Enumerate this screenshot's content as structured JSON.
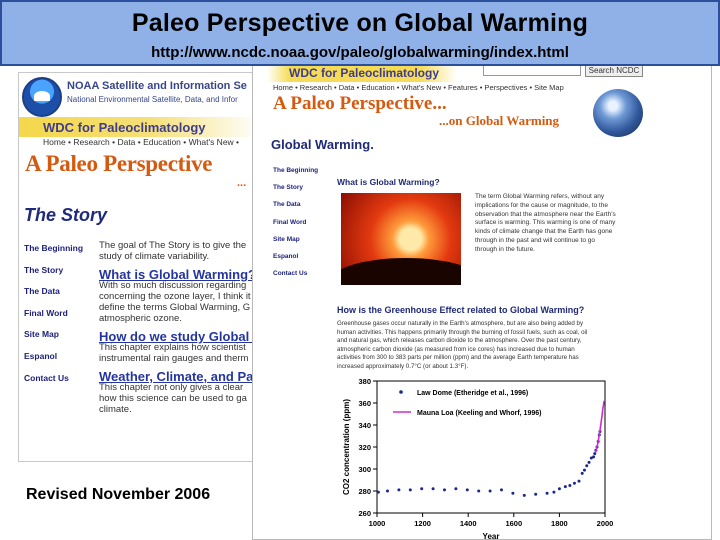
{
  "banner": {
    "title": "Paleo Perspective on Global Warming",
    "url": "http://www.ncdc.noaa.gov/paleo/globalwarming/index.html"
  },
  "footer": {
    "revised": "Revised November 2006"
  },
  "left_page": {
    "noaa_title": "NOAA Satellite and Information Se",
    "noaa_subtitle": "National Environmental Satellite, Data, and Infor",
    "wdc_title": "WDC for Paleoclimatology",
    "nav": "Home • Research • Data • Education • What's New •",
    "paleo_title": "A Paleo Perspective",
    "paleo_dots": "...",
    "section_title": "The Story",
    "side_links": [
      "The Beginning",
      "The Story",
      "The Data",
      "Final Word",
      "Site Map",
      "Espanol",
      "Contact Us"
    ],
    "body": {
      "intro": [
        "The goal of The Story is to give the",
        "study of climate variability."
      ],
      "link1": "What is Global Warming?",
      "text1": [
        "With so much discussion regarding",
        "concerning the ozone layer, I think it",
        "define the terms Global Warming, G",
        "atmospheric ozone."
      ],
      "link2": "How do we study Global W",
      "text2": [
        "This chapter explains how scientist",
        "instrumental rain gauges and therm"
      ],
      "link3": "Weather, Climate, and Pale",
      "text3": [
        "This chapter not only gives a clear",
        "how this science can be used to ga",
        "climate."
      ]
    }
  },
  "right_page": {
    "wdc_title": "WDC for Paleoclimatology",
    "search_button": "Search NCDC",
    "nav": "Home • Research • Data • Education • What's New • Features • Perspectives • Site Map",
    "paleo_title_1": "A Paleo Perspective...",
    "paleo_title_2": "...on Global Warming",
    "section_title": "Global Warming.",
    "side_links": [
      "The Beginning",
      "The Story",
      "The Data",
      "Final Word",
      "Site Map",
      "Espanol",
      "Contact Us"
    ],
    "question1": "What is Global Warming?",
    "para1": [
      "The term Global Warming refers, without any",
      "implications for the cause or magnitude, to the",
      "observation that the atmosphere near the Earth's",
      "surface is warming. This warming is one of many",
      "kinds of climate change that the Earth has gone",
      "through in the past and will continue to go",
      "through in the future."
    ],
    "question2": "How is the Greenhouse Effect related to Global Warming?",
    "para2": [
      "Greenhouse gases occur naturally in the Earth's atmosphere, but are also being added by",
      "human activities. This happens primarily through the burning of fossil fuels, such as coal, oil",
      "and natural gas, which releases carbon dioxide to the atmosphere. Over the past century,",
      "atmospheric carbon dioxide (as measured from ice cores) has increased due to human",
      "activities from 300 to 383 parts per million (ppm) and the average Earth temperature has",
      "increased approximately 0.7°C (or about 1.3°F)."
    ]
  },
  "chart_data": {
    "type": "scatter",
    "title": "",
    "xlabel": "Year",
    "ylabel": "CO2 concentration (ppm)",
    "xlim": [
      1000,
      2000
    ],
    "ylim": [
      260,
      380
    ],
    "xticks": [
      "1000",
      "1200",
      "1400",
      "1600",
      "1800",
      "2000"
    ],
    "yticks": [
      "260",
      "280",
      "300",
      "320",
      "340",
      "360",
      "380"
    ],
    "legend_position": "top-left",
    "series": [
      {
        "name": "Law Dome (Etheridge et al., 1996)",
        "style": "points",
        "color": "#1b2a8a",
        "x": [
          1006,
          1046,
          1096,
          1146,
          1196,
          1246,
          1296,
          1346,
          1396,
          1446,
          1496,
          1546,
          1596,
          1646,
          1696,
          1746,
          1776,
          1800,
          1826,
          1846,
          1866,
          1886,
          1900,
          1910,
          1920,
          1930,
          1940,
          1950,
          1955,
          1960,
          1965,
          1970,
          1975,
          1978
        ],
        "y": [
          279,
          280,
          281,
          281,
          282,
          282,
          281,
          282,
          281,
          280,
          280,
          281,
          278,
          276,
          277,
          278,
          279,
          282,
          284,
          285,
          287,
          289,
          296,
          299,
          303,
          306,
          310,
          311,
          314,
          317,
          320,
          325,
          331,
          334
        ]
      },
      {
        "name": "Mauna Loa (Keeling and Whorf, 1996)",
        "style": "line",
        "color": "#d02bd0",
        "x": [
          1958,
          1962,
          1966,
          1970,
          1974,
          1978,
          1982,
          1986,
          1990,
          1994,
          1996
        ],
        "y": [
          315,
          318,
          321,
          325,
          330,
          335,
          341,
          347,
          354,
          359,
          362
        ]
      }
    ]
  }
}
